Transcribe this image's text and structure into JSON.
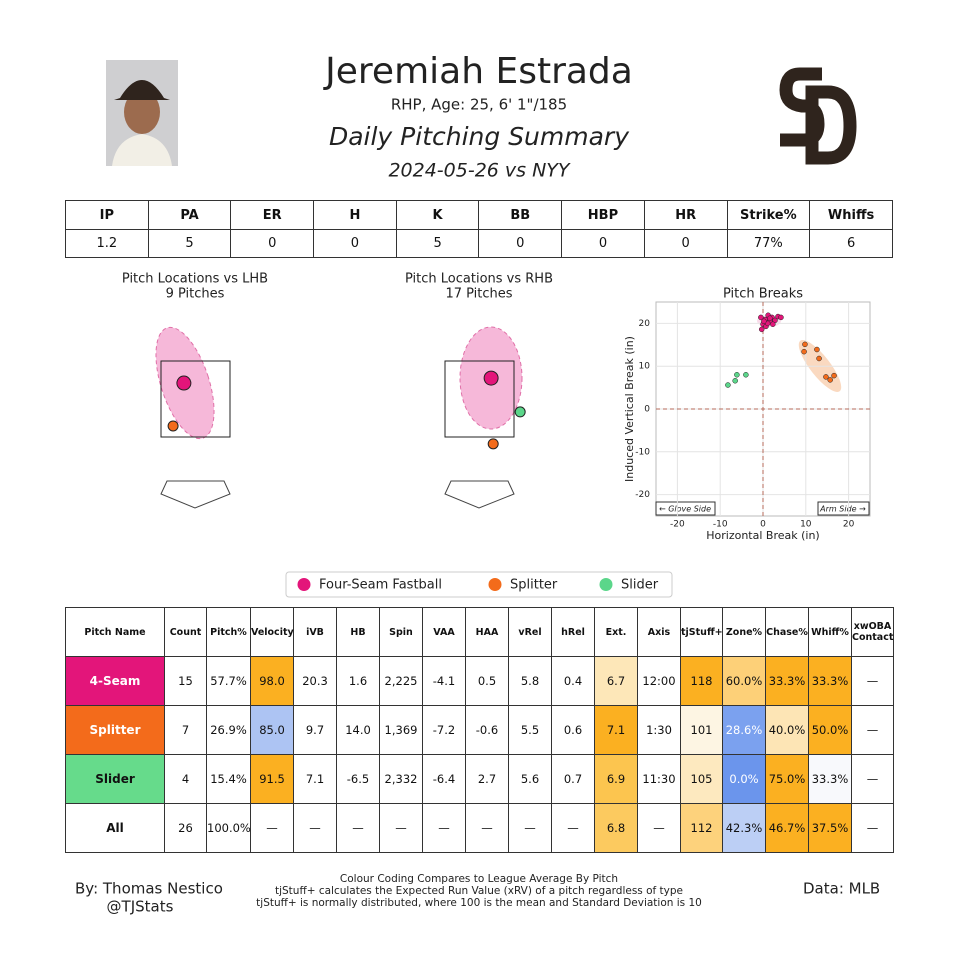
{
  "header": {
    "name": "Jeremiah Estrada",
    "bio": "RHP, Age: 25, 6' 1\"/185",
    "title": "Daily Pitching Summary",
    "game": "2024-05-26 vs NYY"
  },
  "summary_table": {
    "columns": [
      "IP",
      "PA",
      "ER",
      "H",
      "K",
      "BB",
      "HBP",
      "HR",
      "Strike%",
      "Whiffs"
    ],
    "values": [
      "1.2",
      "5",
      "0",
      "0",
      "5",
      "0",
      "0",
      "0",
      "77%",
      "6"
    ]
  },
  "chart_data": [
    {
      "type": "scatter",
      "title": "Pitch Locations vs LHB",
      "subtitle": "9 Pitches",
      "xlim": [
        -2,
        2
      ],
      "ylim": [
        0,
        5
      ],
      "series": [
        {
          "color": "#e3157a",
          "x": [
            -0.28
          ],
          "values": [
            2.92
          ]
        },
        {
          "color": "#f36b1b",
          "x": [
            -0.54
          ],
          "values": [
            1.79
          ]
        }
      ]
    },
    {
      "type": "scatter",
      "title": "Pitch Locations vs RHB",
      "subtitle": "17 Pitches",
      "xlim": [
        -2,
        2
      ],
      "ylim": [
        0,
        5
      ],
      "series": [
        {
          "color": "#e3157a",
          "x": [
            0.28
          ],
          "values": [
            3.05
          ]
        },
        {
          "color": "#f36b1b",
          "x": [
            0.33
          ],
          "values": [
            1.32
          ]
        },
        {
          "color": "#5bd68a",
          "x": [
            0.98
          ],
          "values": [
            2.16
          ]
        }
      ]
    },
    {
      "type": "scatter",
      "title": "Pitch Breaks",
      "xlabel": "Horizontal Break (in)",
      "ylabel": "Induced Vertical Break (in)",
      "xlim": [
        -25,
        25
      ],
      "ylim": [
        -25,
        25
      ],
      "xticks": [
        -20,
        -10,
        0,
        10,
        20
      ],
      "yticks": [
        -20,
        -10,
        0,
        10,
        20
      ],
      "grid": true,
      "annotations": [
        "← Glove Side",
        "Arm Side →"
      ],
      "series": [
        {
          "name": "Four-Seam Fastball",
          "color": "#e3157a",
          "x": [
            -0.5,
            0.5,
            1.2,
            2.1,
            2.8,
            3.5,
            4.2,
            1.6,
            0,
            0.7,
            -0.3,
            1.1,
            2.3,
            0.2,
            1.6
          ],
          "values": [
            21.4,
            20.9,
            21.9,
            21.4,
            20.7,
            21.6,
            21.4,
            20.5,
            19.8,
            19.3,
            18.6,
            20.0,
            19.8,
            20.5,
            21.2
          ]
        },
        {
          "name": "Splitter",
          "color": "#f36b1b",
          "x": [
            9.8,
            12.6,
            9.6,
            13.1,
            14.7,
            16.6,
            15.7
          ],
          "values": [
            15.1,
            13.9,
            13.4,
            11.8,
            7.5,
            7.8,
            6.8
          ]
        },
        {
          "name": "Slider",
          "color": "#5bd68a",
          "x": [
            -6.1,
            -4.0,
            -6.5,
            -8.2
          ],
          "values": [
            8.0,
            8.0,
            6.6,
            5.6
          ]
        }
      ]
    }
  ],
  "pitch_table": {
    "columns": [
      "Pitch Name",
      "Count",
      "Pitch%",
      "Velocity",
      "iVB",
      "HB",
      "Spin",
      "VAA",
      "HAA",
      "vRel",
      "hRel",
      "Ext.",
      "Axis",
      "tjStuff+",
      "Zone%",
      "Chase%",
      "Whiff%",
      "xwOBA Contact"
    ],
    "rows": [
      [
        "4-Seam",
        "15",
        "57.7%",
        "98.0",
        "20.3",
        "1.6",
        "2,225",
        "-4.1",
        "0.5",
        "5.8",
        "0.4",
        "6.7",
        "12:00",
        "118",
        "60.0%",
        "33.3%",
        "33.3%",
        "—"
      ],
      [
        "Splitter",
        "7",
        "26.9%",
        "85.0",
        "9.7",
        "14.0",
        "1,369",
        "-7.2",
        "-0.6",
        "5.5",
        "0.6",
        "7.1",
        "1:30",
        "101",
        "28.6%",
        "40.0%",
        "50.0%",
        "—"
      ],
      [
        "Slider",
        "4",
        "15.4%",
        "91.5",
        "7.1",
        "-6.5",
        "2,332",
        "-6.4",
        "2.7",
        "5.6",
        "0.7",
        "6.9",
        "11:30",
        "105",
        "0.0%",
        "75.0%",
        "33.3%",
        "—"
      ],
      [
        "All",
        "26",
        "100.0%",
        "—",
        "—",
        "—",
        "—",
        "—",
        "—",
        "—",
        "—",
        "6.8",
        "—",
        "112",
        "42.3%",
        "46.7%",
        "37.5%",
        "—"
      ]
    ],
    "cell_colors": [
      [
        "#e3157a",
        null,
        null,
        "#fbb021",
        null,
        null,
        null,
        null,
        null,
        null,
        null,
        "#fde7b8",
        null,
        "#fbb021",
        "#fdd078",
        "#fbb021",
        "#fbb021",
        null
      ],
      [
        "#f36b1b",
        null,
        null,
        "#adc4f3",
        null,
        null,
        null,
        null,
        null,
        null,
        null,
        "#fbb021",
        null,
        "#fdf5e3",
        "#7ba1ef",
        "#fde5b5",
        "#fbb021",
        null
      ],
      [
        "#66db8b",
        null,
        null,
        "#fbb021",
        null,
        null,
        null,
        null,
        null,
        null,
        null,
        "#fcc54f",
        null,
        "#fde9bf",
        "#6b95ec",
        "#fbb021",
        "#f8f9fc",
        null
      ],
      [
        null,
        null,
        null,
        null,
        null,
        null,
        null,
        null,
        null,
        null,
        null,
        "#fcca5f",
        null,
        "#fdd27c",
        "#bccff5",
        "#fbb021",
        "#fbb021",
        null
      ]
    ]
  },
  "footer": {
    "author": "By: Thomas Nestico",
    "handle": "@TJStats",
    "notes": [
      "Colour Coding Compares to League Average By Pitch",
      "tjStuff+ calculates the Expected Run Value (xRV) of a pitch regardless of type",
      "tjStuff+ is normally distributed, where 100 is the mean and Standard Deviation is 10"
    ],
    "source": "Data: MLB"
  }
}
